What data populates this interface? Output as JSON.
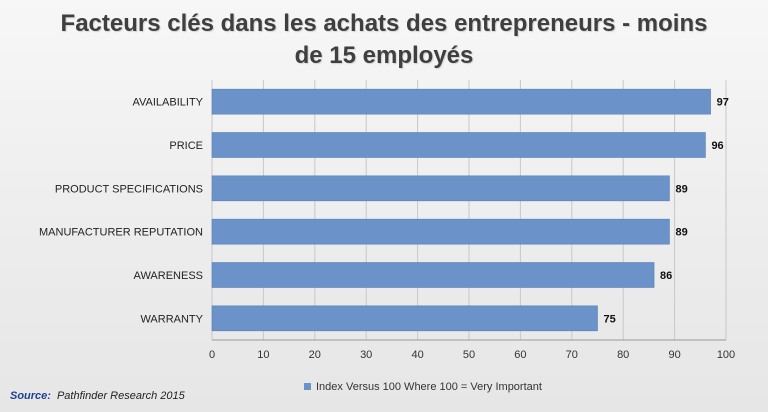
{
  "source": {
    "label": "Source:",
    "text": "Pathfinder Research 2015"
  },
  "colors": {
    "bar": "#6b93c9",
    "bar_stroke": "#5a80b6",
    "grid": "#c8c8c8",
    "axis": "#9a9a9a"
  },
  "chart_data": {
    "type": "bar",
    "orientation": "horizontal",
    "title": "Facteurs clés dans les achats des entrepreneurs - moins de 15 employés",
    "categories": [
      "AVAILABILITY",
      "PRICE",
      "PRODUCT SPECIFICATIONS",
      "MANUFACTURER REPUTATION",
      "AWARENESS",
      "WARRANTY"
    ],
    "series": [
      {
        "name": "Index Versus 100 Where 100 = Very Important",
        "values": [
          97,
          96,
          89,
          89,
          86,
          75
        ]
      }
    ],
    "xlim": [
      0,
      100
    ],
    "xticks": [
      0,
      10,
      20,
      30,
      40,
      50,
      60,
      70,
      80,
      90,
      100
    ],
    "grid": true,
    "legend": "bottom"
  }
}
